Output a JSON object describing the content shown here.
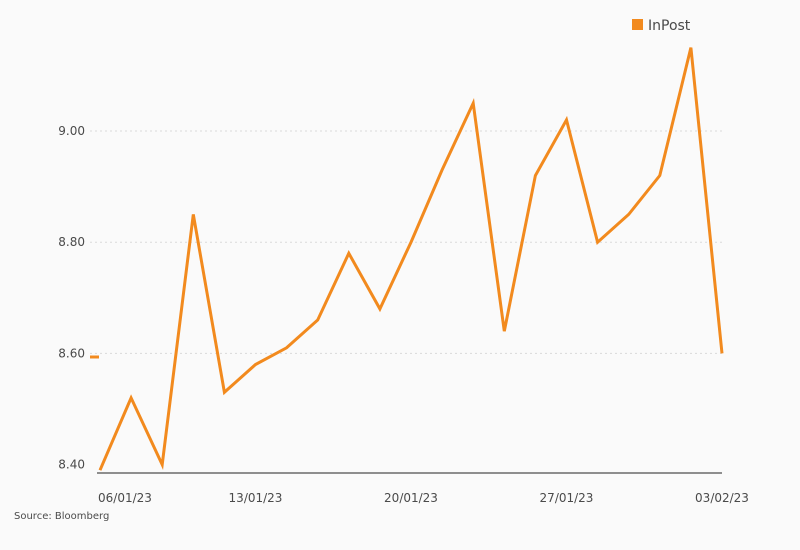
{
  "chart_data": {
    "type": "line",
    "title": "",
    "xlabel": "",
    "ylabel": "",
    "x": [
      "06/01/23",
      "09/01/23",
      "10/01/23",
      "11/01/23",
      "12/01/23",
      "13/01/23",
      "16/01/23",
      "17/01/23",
      "18/01/23",
      "19/01/23",
      "20/01/23",
      "23/01/23",
      "24/01/23",
      "25/01/23",
      "26/01/23",
      "27/01/23",
      "30/01/23",
      "31/01/23",
      "01/02/23",
      "02/02/23",
      "03/02/23"
    ],
    "x_ticks": [
      "06/01/23",
      "13/01/23",
      "20/01/23",
      "27/01/23",
      "03/02/23"
    ],
    "y_ticks": [
      "8.40",
      "8.60",
      "8.80",
      "9.00"
    ],
    "ylim": [
      8.4,
      9.2
    ],
    "grid": true,
    "legend_position": "top-right",
    "series": [
      {
        "name": "InPost",
        "color": "#f28a1e",
        "values": [
          8.39,
          8.52,
          8.4,
          8.85,
          8.53,
          8.58,
          8.61,
          8.66,
          8.78,
          8.68,
          8.8,
          8.93,
          9.05,
          8.64,
          8.92,
          9.02,
          8.8,
          8.85,
          8.92,
          9.15,
          8.6
        ]
      }
    ]
  },
  "source": "Source: Bloomberg"
}
